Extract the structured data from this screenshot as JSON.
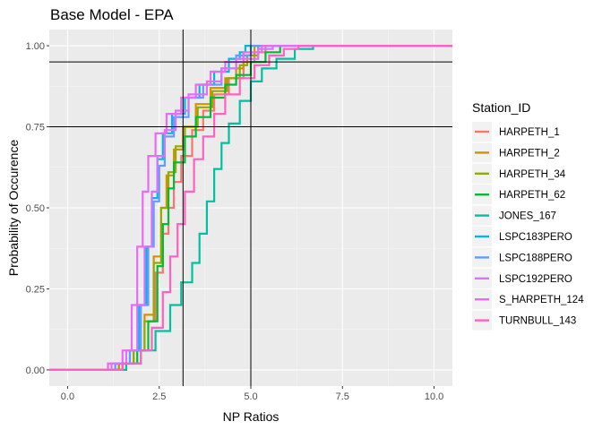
{
  "chart_data": {
    "type": "line",
    "subtype": "ecdf-step",
    "title": "Base Model - EPA",
    "xlabel": "NP Ratios",
    "ylabel": "Probability of Occurence",
    "xlim": [
      -0.5,
      10.5
    ],
    "ylim": [
      -0.05,
      1.05
    ],
    "x_ticks": [
      0,
      2.5,
      5,
      7.5,
      10
    ],
    "x_tick_labels": [
      "0.0",
      "2.5",
      "5.0",
      "7.5",
      "10.0"
    ],
    "y_ticks": [
      0,
      0.25,
      0.5,
      0.75,
      1
    ],
    "y_tick_labels": [
      "0.00",
      "0.25",
      "0.50",
      "0.75",
      "1.00"
    ],
    "grid": true,
    "background": "#ebebeb",
    "legend_title": "Station_ID",
    "legend_position": "right",
    "reference_lines": {
      "vertical": [
        3.15,
        5.0
      ],
      "horizontal": [
        0.75,
        0.95
      ]
    },
    "series": [
      {
        "name": "HARPETH_1",
        "color": "#F8766D",
        "points": [
          [
            -0.5,
            0
          ],
          [
            1.0,
            0
          ],
          [
            1.5,
            0.02
          ],
          [
            1.8,
            0.06
          ],
          [
            2.1,
            0.15
          ],
          [
            2.4,
            0.3
          ],
          [
            2.6,
            0.42
          ],
          [
            2.75,
            0.5
          ],
          [
            2.9,
            0.58
          ],
          [
            3.1,
            0.66
          ],
          [
            3.4,
            0.74
          ],
          [
            3.7,
            0.8
          ],
          [
            4.0,
            0.85
          ],
          [
            4.4,
            0.9
          ],
          [
            4.8,
            0.95
          ],
          [
            5.1,
            0.98
          ],
          [
            5.4,
            1.0
          ],
          [
            10.5,
            1.0
          ]
        ]
      },
      {
        "name": "HARPETH_2",
        "color": "#D39200",
        "points": [
          [
            -0.5,
            0
          ],
          [
            1.0,
            0
          ],
          [
            1.4,
            0.02
          ],
          [
            1.8,
            0.06
          ],
          [
            2.1,
            0.17
          ],
          [
            2.35,
            0.35
          ],
          [
            2.55,
            0.5
          ],
          [
            2.7,
            0.6
          ],
          [
            2.9,
            0.68
          ],
          [
            3.15,
            0.75
          ],
          [
            3.5,
            0.82
          ],
          [
            3.9,
            0.87
          ],
          [
            4.3,
            0.9
          ],
          [
            4.6,
            0.93
          ],
          [
            4.8,
            0.97
          ],
          [
            5.1,
            1.0
          ],
          [
            10.5,
            1.0
          ]
        ]
      },
      {
        "name": "HARPETH_34",
        "color": "#93AA00",
        "points": [
          [
            -0.5,
            0
          ],
          [
            1.0,
            0
          ],
          [
            1.4,
            0.02
          ],
          [
            1.8,
            0.06
          ],
          [
            2.1,
            0.15
          ],
          [
            2.35,
            0.33
          ],
          [
            2.55,
            0.5
          ],
          [
            2.75,
            0.61
          ],
          [
            2.95,
            0.69
          ],
          [
            3.2,
            0.75
          ],
          [
            3.55,
            0.81
          ],
          [
            3.95,
            0.86
          ],
          [
            4.35,
            0.9
          ],
          [
            4.7,
            0.94
          ],
          [
            4.9,
            0.97
          ],
          [
            5.2,
            1.0
          ],
          [
            10.5,
            1.0
          ]
        ]
      },
      {
        "name": "HARPETH_62",
        "color": "#00BA38",
        "points": [
          [
            -0.5,
            0
          ],
          [
            1.0,
            0
          ],
          [
            1.5,
            0.02
          ],
          [
            1.9,
            0.06
          ],
          [
            2.2,
            0.15
          ],
          [
            2.45,
            0.32
          ],
          [
            2.6,
            0.45
          ],
          [
            2.75,
            0.56
          ],
          [
            2.9,
            0.64
          ],
          [
            3.2,
            0.72
          ],
          [
            3.5,
            0.78
          ],
          [
            3.9,
            0.84
          ],
          [
            4.3,
            0.88
          ],
          [
            4.6,
            0.91
          ],
          [
            5.0,
            0.95
          ],
          [
            5.4,
            0.98
          ],
          [
            5.8,
            1.0
          ],
          [
            10.5,
            1.0
          ]
        ]
      },
      {
        "name": "JONES_167",
        "color": "#00C19F",
        "points": [
          [
            -0.5,
            0
          ],
          [
            1.0,
            0
          ],
          [
            1.6,
            0.02
          ],
          [
            2.0,
            0.06
          ],
          [
            2.4,
            0.12
          ],
          [
            2.8,
            0.2
          ],
          [
            3.1,
            0.27
          ],
          [
            3.4,
            0.33
          ],
          [
            3.6,
            0.42
          ],
          [
            3.8,
            0.52
          ],
          [
            4.0,
            0.62
          ],
          [
            4.2,
            0.7
          ],
          [
            4.4,
            0.76
          ],
          [
            4.7,
            0.83
          ],
          [
            5.0,
            0.89
          ],
          [
            5.3,
            0.93
          ],
          [
            5.7,
            0.96
          ],
          [
            6.2,
            0.99
          ],
          [
            6.7,
            1.0
          ],
          [
            10.5,
            1.0
          ]
        ]
      },
      {
        "name": "LSPC183PERO",
        "color": "#00B9E3",
        "points": [
          [
            -0.5,
            0
          ],
          [
            0.9,
            0
          ],
          [
            1.3,
            0.02
          ],
          [
            1.7,
            0.06
          ],
          [
            1.95,
            0.2
          ],
          [
            2.15,
            0.38
          ],
          [
            2.3,
            0.53
          ],
          [
            2.45,
            0.65
          ],
          [
            2.6,
            0.73
          ],
          [
            2.85,
            0.79
          ],
          [
            3.2,
            0.84
          ],
          [
            3.6,
            0.88
          ],
          [
            4.0,
            0.92
          ],
          [
            4.4,
            0.96
          ],
          [
            4.7,
            0.98
          ],
          [
            4.85,
            1.0
          ],
          [
            10.5,
            1.0
          ]
        ]
      },
      {
        "name": "LSPC188PERO",
        "color": "#619CFF",
        "points": [
          [
            -0.5,
            0
          ],
          [
            0.9,
            0
          ],
          [
            1.3,
            0.02
          ],
          [
            1.7,
            0.06
          ],
          [
            2.0,
            0.2
          ],
          [
            2.2,
            0.38
          ],
          [
            2.35,
            0.52
          ],
          [
            2.5,
            0.63
          ],
          [
            2.65,
            0.72
          ],
          [
            2.9,
            0.78
          ],
          [
            3.3,
            0.84
          ],
          [
            3.7,
            0.88
          ],
          [
            4.2,
            0.93
          ],
          [
            4.6,
            0.97
          ],
          [
            5.0,
            1.0
          ],
          [
            10.5,
            1.0
          ]
        ]
      },
      {
        "name": "LSPC192PERO",
        "color": "#DB72FB",
        "points": [
          [
            -0.5,
            0
          ],
          [
            0.8,
            0
          ],
          [
            1.2,
            0.02
          ],
          [
            1.6,
            0.06
          ],
          [
            1.9,
            0.2
          ],
          [
            2.1,
            0.38
          ],
          [
            2.3,
            0.55
          ],
          [
            2.45,
            0.66
          ],
          [
            2.65,
            0.74
          ],
          [
            2.95,
            0.8
          ],
          [
            3.3,
            0.85
          ],
          [
            3.8,
            0.89
          ],
          [
            4.2,
            0.93
          ],
          [
            4.6,
            0.96
          ],
          [
            5.2,
            0.99
          ],
          [
            5.6,
            1.0
          ],
          [
            10.5,
            1.0
          ]
        ]
      },
      {
        "name": "S_HARPETH_124",
        "color": "#E76BF3",
        "points": [
          [
            -0.5,
            0
          ],
          [
            0.7,
            0
          ],
          [
            1.1,
            0.02
          ],
          [
            1.5,
            0.06
          ],
          [
            1.75,
            0.2
          ],
          [
            1.9,
            0.38
          ],
          [
            2.05,
            0.55
          ],
          [
            2.2,
            0.66
          ],
          [
            2.4,
            0.73
          ],
          [
            2.7,
            0.79
          ],
          [
            3.1,
            0.84
          ],
          [
            3.5,
            0.88
          ],
          [
            3.9,
            0.92
          ],
          [
            4.3,
            0.95
          ],
          [
            4.8,
            0.98
          ],
          [
            5.3,
            1.0
          ],
          [
            10.5,
            1.0
          ]
        ]
      },
      {
        "name": "TURNBULL_143",
        "color": "#FF61C3",
        "points": [
          [
            -0.5,
            0
          ],
          [
            1.0,
            0
          ],
          [
            1.5,
            0.02
          ],
          [
            2.0,
            0.06
          ],
          [
            2.3,
            0.13
          ],
          [
            2.6,
            0.24
          ],
          [
            2.8,
            0.35
          ],
          [
            3.0,
            0.45
          ],
          [
            3.2,
            0.55
          ],
          [
            3.45,
            0.65
          ],
          [
            3.7,
            0.72
          ],
          [
            4.0,
            0.79
          ],
          [
            4.3,
            0.85
          ],
          [
            4.7,
            0.9
          ],
          [
            5.1,
            0.94
          ],
          [
            5.5,
            0.97
          ],
          [
            5.9,
            0.99
          ],
          [
            6.3,
            1.0
          ],
          [
            10.5,
            1.0
          ]
        ]
      }
    ]
  }
}
